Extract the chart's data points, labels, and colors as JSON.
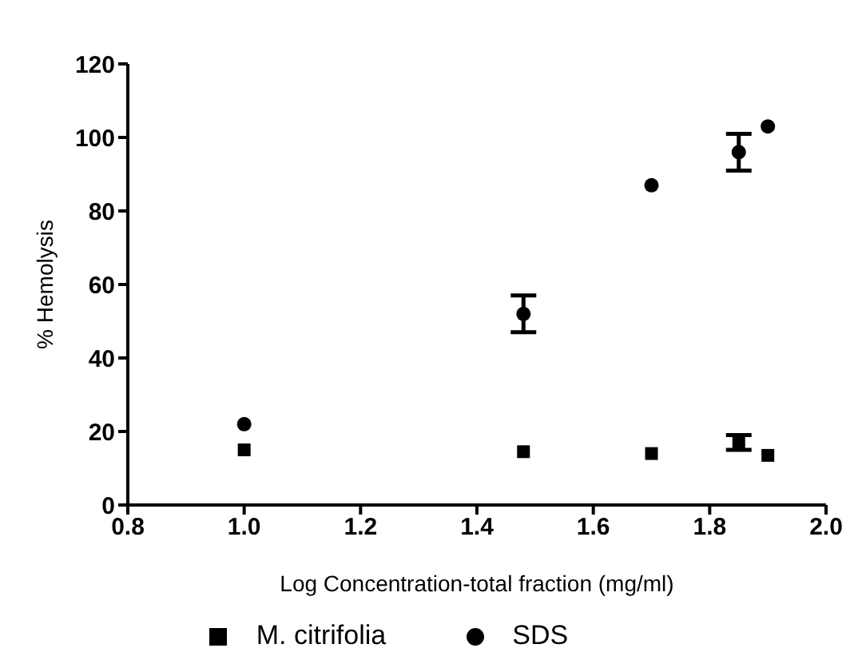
{
  "chart_data": {
    "type": "scatter",
    "xlabel": "Log Concentration-total fraction (mg/ml)",
    "ylabel": "% Hemolysis",
    "xlim": [
      0.8,
      2.0
    ],
    "xticks": [
      {
        "value": 0.8,
        "label": "0.8"
      },
      {
        "value": 1.0,
        "label": "1.0"
      },
      {
        "value": 1.2,
        "label": "1.2"
      },
      {
        "value": 1.4,
        "label": "1.4"
      },
      {
        "value": 1.6,
        "label": "1.6"
      },
      {
        "value": 1.8,
        "label": "1.8"
      },
      {
        "value": 2.0,
        "label": "2.0"
      }
    ],
    "ylim": [
      0,
      120
    ],
    "yticks": [
      0,
      20,
      40,
      60,
      80,
      100,
      120
    ],
    "grid": false,
    "legend": "bottom",
    "series": [
      {
        "name": "SDS",
        "color": "#000000",
        "marker": "circle",
        "x": [
          1.0,
          1.48,
          1.7,
          1.85,
          1.9
        ],
        "values": [
          22,
          52,
          87,
          96,
          103
        ],
        "errors": [
          null,
          5,
          null,
          5,
          null
        ]
      },
      {
        "name": "M. citrifolia",
        "color": "#000000",
        "marker": "square",
        "x": [
          1.0,
          1.48,
          1.7,
          1.85,
          1.9
        ],
        "values": [
          15,
          14.5,
          14,
          17,
          13.5
        ],
        "errors": [
          null,
          null,
          null,
          2,
          null
        ]
      }
    ]
  }
}
